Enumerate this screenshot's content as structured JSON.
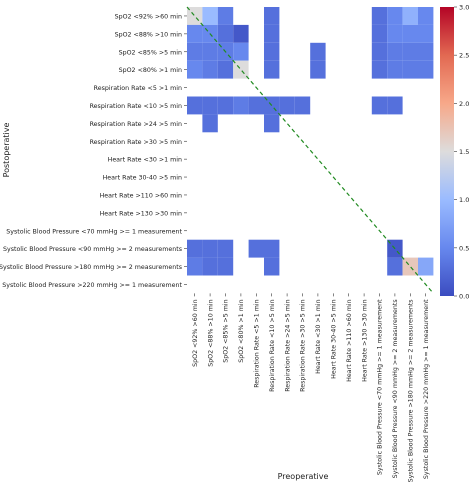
{
  "chart_data": {
    "type": "heatmap",
    "title": "",
    "xlabel": "Preoperative",
    "ylabel": "Postoperative",
    "categories": [
      "SpO2 <92% >60 min",
      "SpO2 <88% >10 min",
      "SpO2 <85% >5 min",
      "SpO2 <80% >1 min",
      "Respiration Rate <5 >1 min",
      "Respiration Rate <10 >5 min",
      "Respiration Rate >24 >5 min",
      "Respiration Rate >30 >5 min",
      "Heart Rate <30 >1 min",
      "Heart Rate 30-40 >5 min",
      "Heart Rate >110 >60 min",
      "Heart Rate >130 >30 min",
      "Systolic Blood Pressure <70 mmHg >= 1 measurement",
      "Systolic Blood Pressure <90 mmHg >= 2 measurements",
      "Systolic Blood Pressure >180 mmHg >= 2 measurements",
      "Systolic Blood Pressure >220 mmHg >= 1 measurement"
    ],
    "values": [
      [
        1.5,
        1.0,
        0.4,
        0,
        0,
        0.3,
        0,
        0,
        0,
        0,
        0,
        0,
        0.3,
        0.5,
        0.9,
        0.5
      ],
      [
        0.5,
        0.5,
        0.3,
        0.1,
        0,
        0.3,
        0,
        0,
        0,
        0,
        0,
        0,
        0.3,
        0.5,
        0.5,
        0.5
      ],
      [
        0.4,
        0.4,
        0.4,
        0.5,
        0,
        0.3,
        0,
        0,
        0.3,
        0,
        0,
        0,
        0.3,
        0.4,
        0.4,
        0.4
      ],
      [
        0.5,
        0.4,
        0.3,
        1.5,
        0,
        0.3,
        0,
        0,
        0.3,
        0,
        0,
        0,
        0.3,
        0.4,
        0.4,
        0.4
      ],
      [
        0,
        0,
        0,
        0,
        0,
        0,
        0,
        0,
        0,
        0,
        0,
        0,
        0,
        0,
        0,
        0
      ],
      [
        0.3,
        0.3,
        0.3,
        0.4,
        0.3,
        0.3,
        0.3,
        0.3,
        0,
        0,
        0,
        0,
        0.3,
        0.3,
        0,
        0
      ],
      [
        0,
        0.3,
        0,
        0,
        0,
        0.3,
        0,
        0,
        0,
        0,
        0,
        0,
        0,
        0,
        0,
        0
      ],
      [
        0,
        0,
        0,
        0,
        0,
        0,
        0,
        0,
        0,
        0,
        0,
        0,
        0,
        0,
        0,
        0
      ],
      [
        0,
        0,
        0,
        0,
        0,
        0,
        0,
        0,
        0,
        0,
        0,
        0,
        0,
        0,
        0,
        0
      ],
      [
        0,
        0,
        0,
        0,
        0,
        0,
        0,
        0,
        0,
        0,
        0,
        0,
        0,
        0,
        0,
        0
      ],
      [
        0,
        0,
        0,
        0,
        0,
        0,
        0,
        0,
        0,
        0,
        0,
        0,
        0,
        0,
        0,
        0
      ],
      [
        0,
        0,
        0,
        0,
        0,
        0,
        0,
        0,
        0,
        0,
        0,
        0,
        0,
        0,
        0,
        0
      ],
      [
        0,
        0,
        0,
        0,
        0,
        0,
        0,
        0,
        0,
        0,
        0,
        0,
        0,
        0,
        0,
        0
      ],
      [
        0.3,
        0.3,
        0.3,
        0,
        0.3,
        0.3,
        0,
        0,
        0,
        0,
        0,
        0,
        0,
        0.1,
        0,
        0
      ],
      [
        0.4,
        0.3,
        0.3,
        0,
        0,
        0.3,
        0,
        0,
        0,
        0,
        0,
        0,
        0,
        0.3,
        1.7,
        0.8
      ],
      [
        0,
        0,
        0,
        0,
        0,
        0,
        0,
        0,
        0,
        0,
        0,
        0,
        0,
        0,
        0,
        0
      ]
    ],
    "zero_cells_blank": true,
    "colorbar": {
      "colormap": "coolwarm",
      "vmin": 0.0,
      "vmax": 3.0,
      "ticks": [
        "0.0",
        "0.5",
        "1.0",
        "1.5",
        "2.0",
        "2.5",
        "3.0"
      ],
      "tick_values": [
        0.0,
        0.5,
        1.0,
        1.5,
        2.0,
        2.5,
        3.0
      ]
    },
    "diagonal": {
      "style": "dashed",
      "color": "#228b22"
    },
    "grid": false,
    "legend": "none"
  }
}
